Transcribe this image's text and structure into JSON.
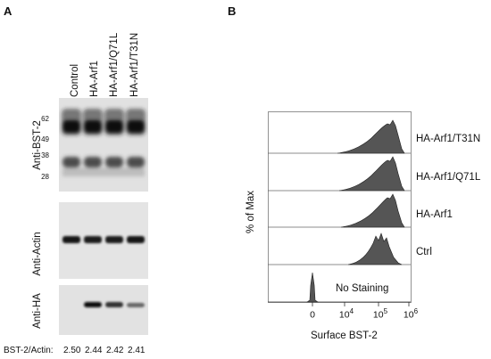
{
  "panel_a": {
    "letter": "A",
    "lanes": [
      "Control",
      "HA-Arf1",
      "HA-Arf1/Q71L",
      "HA-Arf1/T31N"
    ],
    "blots": [
      {
        "label": "Anti-BST-2",
        "markers": [
          "62",
          "49",
          "38",
          "28"
        ]
      },
      {
        "label": "Anti-Actin"
      },
      {
        "label": "Anti-HA"
      }
    ],
    "ratio_label": "BST-2/Actin:",
    "ratios": [
      "2.50",
      "2.44",
      "2.42",
      "2.41"
    ]
  },
  "panel_b": {
    "letter": "B",
    "ylabel": "% of Max",
    "xlabel": "Surface BST-2",
    "rows": [
      "HA-Arf1/T31N",
      "HA-Arf1/Q71L",
      "HA-Arf1",
      "Ctrl",
      "No Staining"
    ],
    "ticks": [
      {
        "base": "0",
        "exp": ""
      },
      {
        "base": "10",
        "exp": "4"
      },
      {
        "base": "10",
        "exp": "5"
      },
      {
        "base": "10",
        "exp": "6"
      }
    ],
    "hist_fill": "#555555"
  }
}
